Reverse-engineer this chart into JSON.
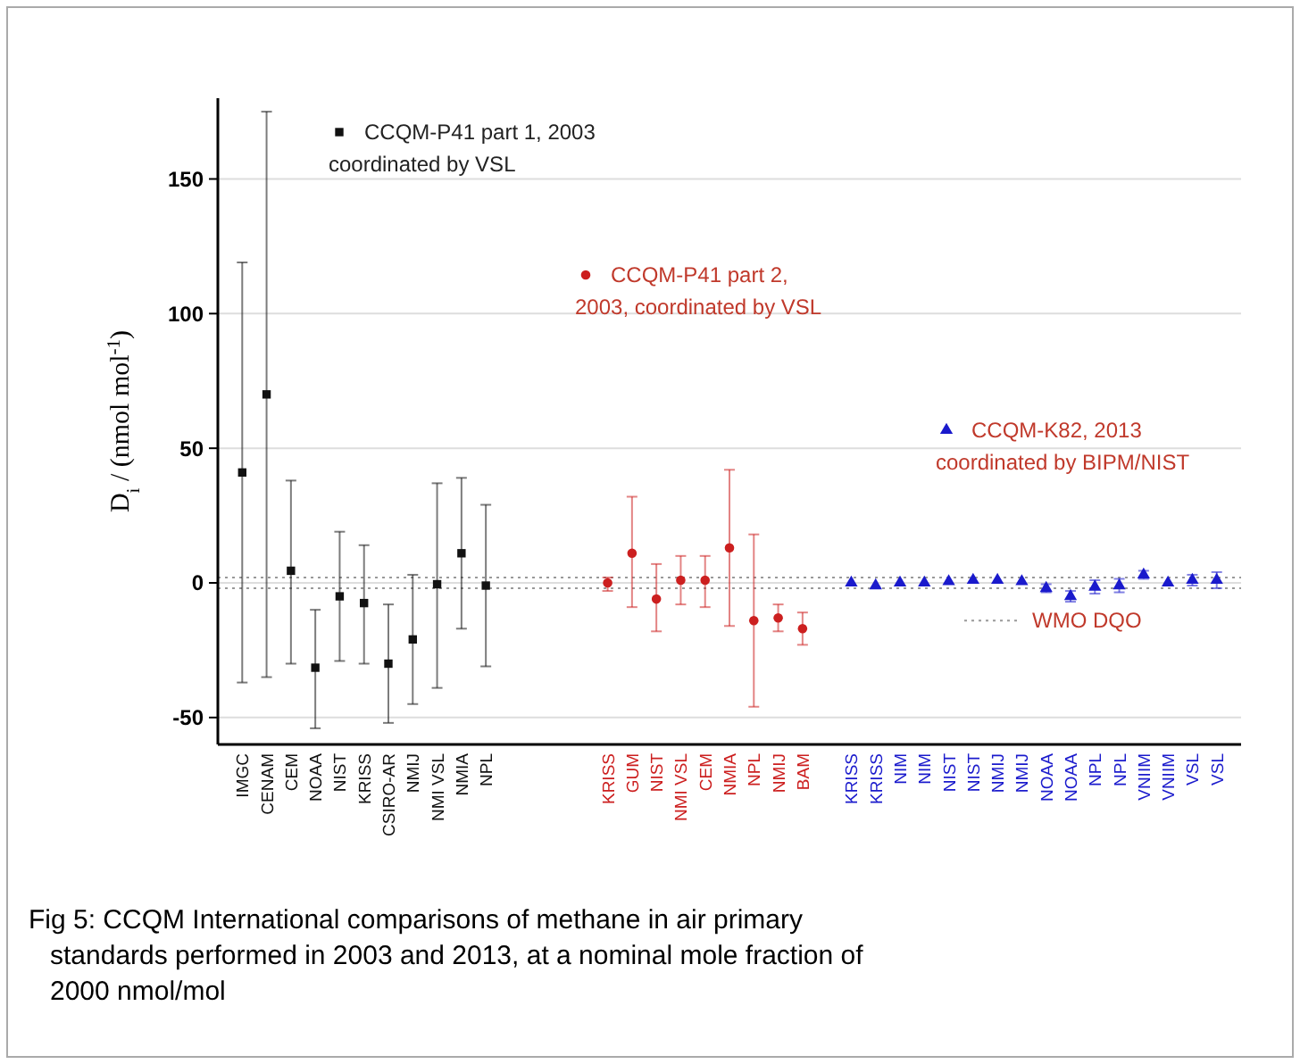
{
  "chart_data": {
    "type": "scatter",
    "ylabel": "D$_{i}$ / (nmol mol$^{-1}$)",
    "categories": [
      "IMGC",
      "CENAM",
      "CEM",
      "NOAA",
      "NIST",
      "KRISS",
      "CSIRO-AR",
      "NMIJ",
      "NMI VSL",
      "NMIA",
      "NPL",
      null,
      null,
      null,
      null,
      "KRISS",
      "GUM",
      "NIST",
      "NMI VSL",
      "CEM",
      "NMIA",
      "NPL",
      "NMIJ",
      "BAM",
      null,
      "KRISS",
      "KRISS",
      "NIM",
      "NIM",
      "NIST",
      "NIST",
      "NMIJ",
      "NMIJ",
      "NOAA",
      "NOAA",
      "NPL",
      "NPL",
      "VNIIM",
      "VNIIM",
      "VSL",
      "VSL"
    ],
    "ylim": [
      -60,
      180
    ],
    "yticks": [
      -50,
      0,
      50,
      100,
      150
    ],
    "grid": "y",
    "legend": "top",
    "series": [
      {
        "name": "CCQM-P41 part 1, 2003\ncoordinated by VSL",
        "color": "#111111",
        "marker": "square",
        "values": [
          41,
          70,
          4.5,
          -31.5,
          -5,
          -7.5,
          -30,
          -21,
          -0.5,
          11,
          -1,
          null,
          null,
          null,
          null,
          null,
          null,
          null,
          null,
          null,
          null,
          null,
          null,
          null,
          null,
          null,
          null,
          null,
          null,
          null,
          null,
          null,
          null,
          null,
          null,
          null,
          null,
          null,
          null,
          null,
          null
        ],
        "errors": [
          [
            -37,
            119
          ],
          [
            -35,
            175
          ],
          [
            -30,
            38
          ],
          [
            -54,
            -10
          ],
          [
            -29,
            19
          ],
          [
            -30,
            14
          ],
          [
            -52,
            -8
          ],
          [
            -45,
            3
          ],
          [
            -39,
            37
          ],
          [
            -17,
            39
          ],
          [
            -31,
            29
          ],
          null,
          null,
          null,
          null,
          null,
          null,
          null,
          null,
          null,
          null,
          null,
          null,
          null,
          null,
          null,
          null,
          null,
          null,
          null,
          null,
          null,
          null,
          null,
          null,
          null,
          null,
          null,
          null,
          null,
          null
        ]
      },
      {
        "name": "CCQM-P41 part 2,\n2003, coordinated by VSL",
        "color": "#cc1f1f",
        "marker": "circle",
        "values": [
          null,
          null,
          null,
          null,
          null,
          null,
          null,
          null,
          null,
          null,
          null,
          null,
          null,
          null,
          null,
          0,
          11,
          -6,
          1,
          1,
          13,
          -14,
          -13,
          -17,
          null,
          null,
          null,
          null,
          null,
          null,
          null,
          null,
          null,
          null,
          null,
          null,
          null,
          null,
          null,
          null,
          null
        ],
        "errors": [
          null,
          null,
          null,
          null,
          null,
          null,
          null,
          null,
          null,
          null,
          null,
          null,
          null,
          null,
          null,
          [
            -3,
            2
          ],
          [
            -9,
            32
          ],
          [
            -18,
            7
          ],
          [
            -8,
            10
          ],
          [
            -9,
            10
          ],
          [
            -16,
            42
          ],
          [
            -46,
            18
          ],
          [
            -18,
            -8
          ],
          [
            -23,
            -11
          ],
          null,
          null,
          null,
          null,
          null,
          null,
          null,
          null,
          null,
          null,
          null,
          null,
          null,
          null,
          null,
          null,
          null
        ]
      },
      {
        "name": "CCQM-K82, 2013\ncoordinated by BIPM/NIST",
        "color": "#1a1acc",
        "marker": "triangle",
        "values": [
          null,
          null,
          null,
          null,
          null,
          null,
          null,
          null,
          null,
          null,
          null,
          null,
          null,
          null,
          null,
          null,
          null,
          null,
          null,
          null,
          null,
          null,
          null,
          null,
          null,
          0,
          -1,
          0,
          0,
          0.5,
          1,
          1,
          0.5,
          -2,
          -5,
          -1.5,
          -1,
          3,
          0,
          1,
          1
        ],
        "errors": [
          null,
          null,
          null,
          null,
          null,
          null,
          null,
          null,
          null,
          null,
          null,
          null,
          null,
          null,
          null,
          null,
          null,
          null,
          null,
          null,
          null,
          null,
          null,
          null,
          null,
          null,
          null,
          null,
          null,
          null,
          null,
          null,
          null,
          1.5,
          2,
          2.5,
          2.5,
          1.5,
          null,
          2,
          3
        ]
      }
    ],
    "ref_lines": [
      {
        "axis": "y",
        "value": 2,
        "label": "WMO DQO",
        "color": "#999999",
        "line_style": "dotted"
      },
      {
        "axis": "y",
        "value": -2,
        "label": null,
        "color": "#999999",
        "line_style": "dotted"
      }
    ],
    "annotations": [
      "Fig 5: CCQM International comparisons of methane in air primary standards performed in 2003 and 2013, at a nominal mole fraction of 2000 nmol/mol"
    ]
  }
}
